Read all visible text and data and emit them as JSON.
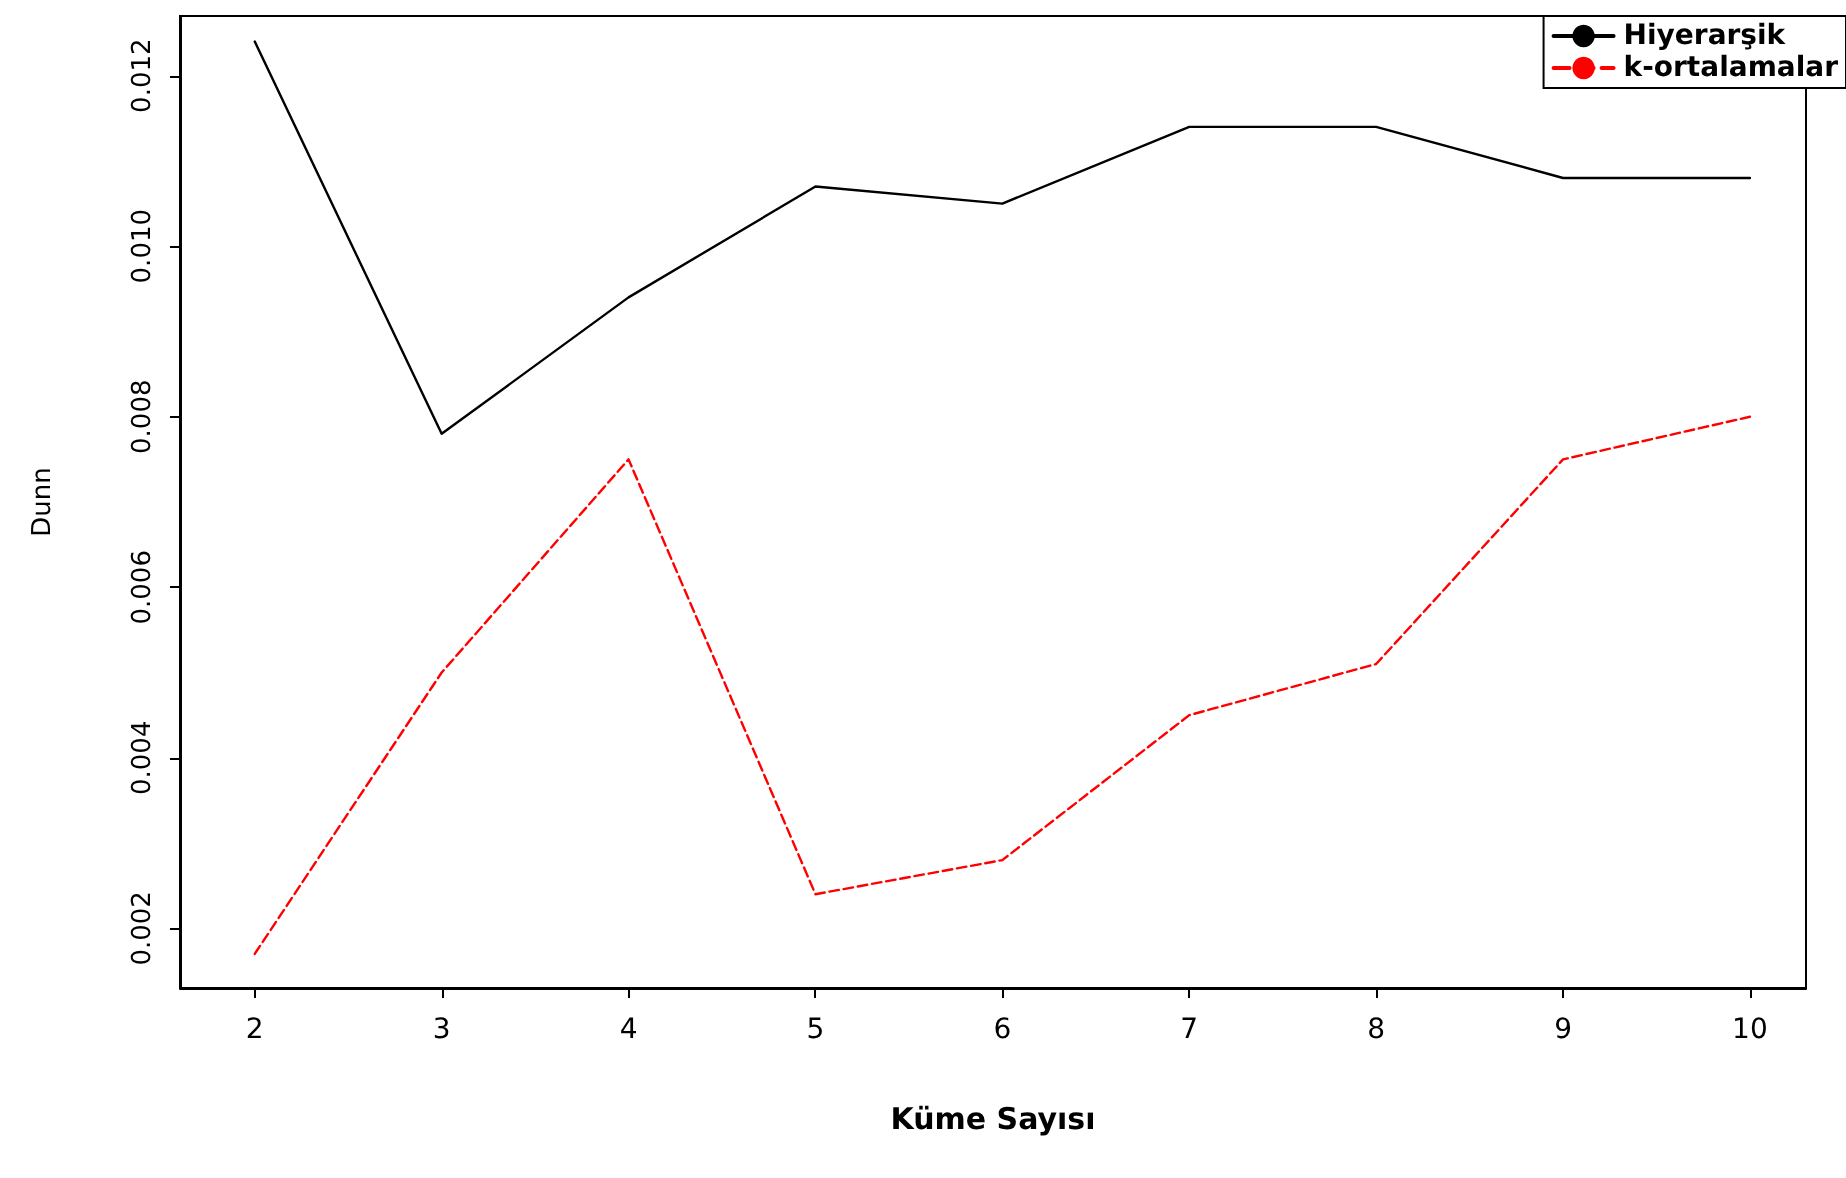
{
  "chart_data": {
    "type": "line",
    "xlabel": "Küme Sayısı",
    "ylabel": "Dunn",
    "x": [
      2,
      3,
      4,
      5,
      6,
      7,
      8,
      9,
      10
    ],
    "series": [
      {
        "name": "Hiyerarşik",
        "color": "#000000",
        "line_style": "solid",
        "values": [
          0.0124,
          0.0078,
          0.0094,
          0.0107,
          0.0105,
          0.0114,
          0.0114,
          0.0108,
          0.0108
        ]
      },
      {
        "name": "k-ortalamalar",
        "color": "#ff0000",
        "line_style": "dashed",
        "values": [
          0.0017,
          0.005,
          0.0075,
          0.0024,
          0.0028,
          0.0045,
          0.0051,
          0.0075,
          0.008
        ]
      }
    ],
    "xlim": [
      1.6,
      10.3
    ],
    "xticks": [
      2,
      3,
      4,
      5,
      6,
      7,
      8,
      9,
      10
    ],
    "ylim": [
      0.0013,
      0.0127
    ],
    "yticks": [
      0.002,
      0.004,
      0.006,
      0.008,
      {
        "value": 0.01,
        "label": "0.010"
      },
      0.012
    ],
    "grid": false,
    "legend": "top right",
    "marker": "none"
  }
}
